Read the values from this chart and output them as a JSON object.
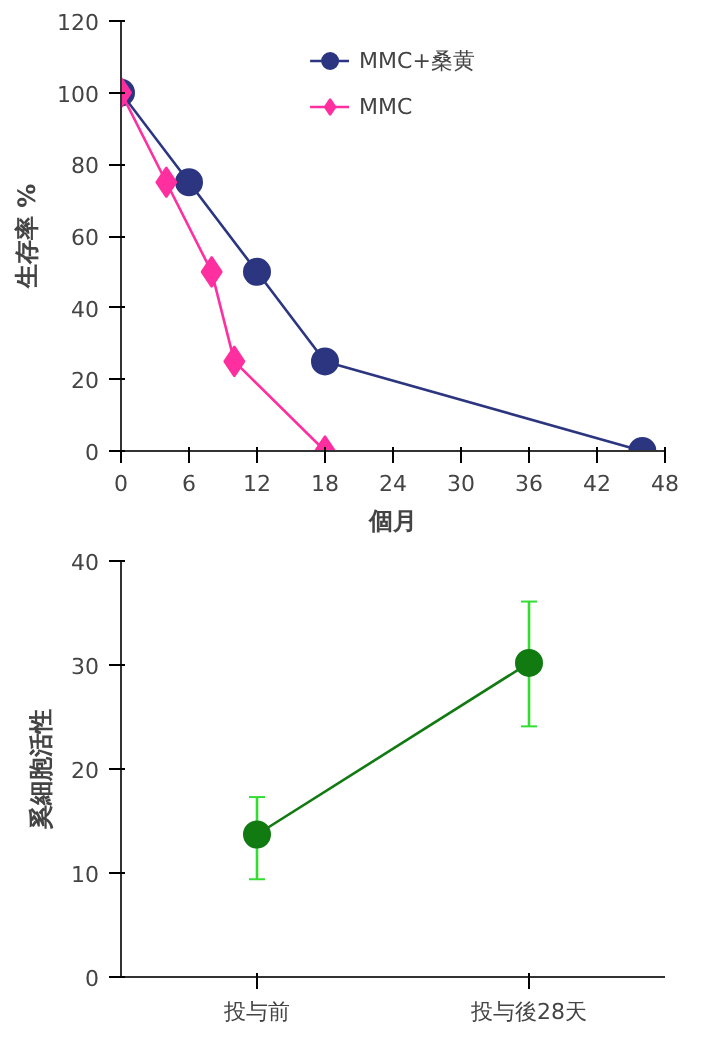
{
  "chart_data": [
    {
      "type": "line",
      "ylabel": "生存率 %",
      "xlabel": "個月",
      "xlim": [
        0,
        48
      ],
      "xticks": [
        0,
        6,
        12,
        18,
        24,
        30,
        36,
        42,
        48
      ],
      "ylim": [
        0,
        120
      ],
      "yticks": [
        0,
        20,
        40,
        60,
        80,
        100,
        120
      ],
      "grid": false,
      "legend": "top",
      "series": [
        {
          "name": "MMC+桑黄",
          "color": "#2b3580",
          "marker": "circle",
          "x": [
            0,
            6,
            12,
            18,
            46
          ],
          "values": [
            100,
            75,
            50,
            25,
            0
          ]
        },
        {
          "name": "MMC",
          "color": "#ff2fa0",
          "marker": "diamond",
          "x": [
            0,
            4,
            8,
            10,
            18
          ],
          "values": [
            100,
            75,
            50,
            25,
            0
          ]
        }
      ]
    },
    {
      "type": "line",
      "ylabel": "奚細胞活性",
      "categories": [
        "投与前",
        "投与後28天"
      ],
      "ylim": [
        0,
        40
      ],
      "yticks": [
        0,
        10,
        20,
        30,
        40
      ],
      "grid": false,
      "legend": false,
      "series": [
        {
          "color": "#117a11",
          "marker": "circle",
          "values": [
            13.7,
            30.2
          ],
          "errors": [
            [
              9.4,
              17.3
            ],
            [
              24.1,
              36.1
            ]
          ]
        }
      ]
    }
  ]
}
